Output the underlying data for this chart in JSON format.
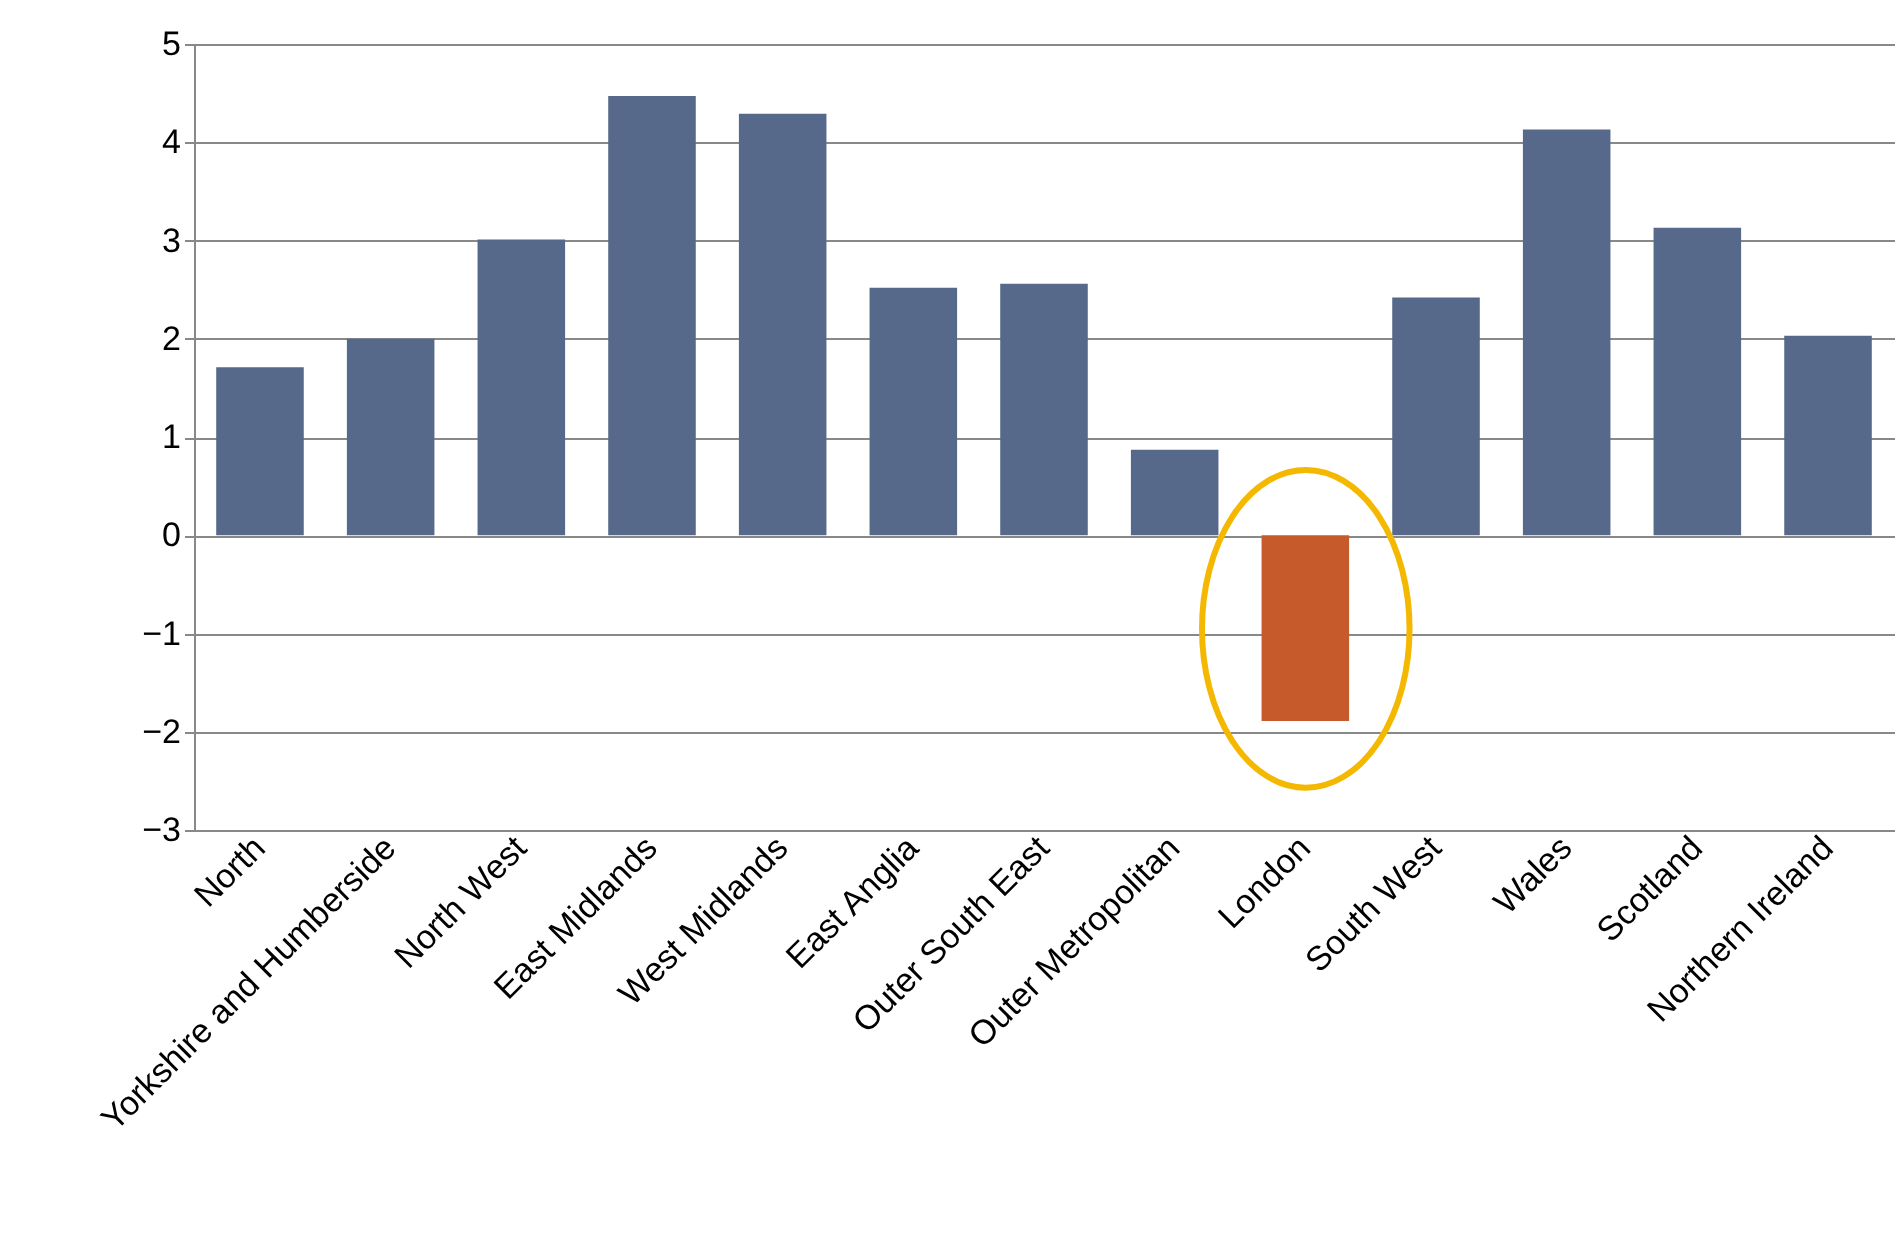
{
  "chart_data": {
    "type": "bar",
    "categories": [
      "North",
      "Yorkshire and Humberside",
      "North West",
      "East Midlands",
      "West Midlands",
      "East Anglia",
      "Outer South East",
      "Outer Metropolitan",
      "London",
      "South West",
      "Wales",
      "Scotland",
      "Northern Ireland"
    ],
    "values": [
      1.71,
      2.0,
      3.01,
      4.47,
      4.29,
      2.52,
      2.56,
      0.87,
      -1.89,
      2.42,
      4.13,
      3.13,
      2.03
    ],
    "colors": [
      "#56698a",
      "#56698a",
      "#56698a",
      "#56698a",
      "#56698a",
      "#56698a",
      "#56698a",
      "#56698a",
      "#c65a2b",
      "#56698a",
      "#56698a",
      "#56698a",
      "#56698a"
    ],
    "ylim": [
      -3,
      5
    ],
    "yticks": [
      -3,
      -2,
      -1,
      0,
      1,
      2,
      3,
      4,
      5
    ],
    "grid": "y"
  }
}
